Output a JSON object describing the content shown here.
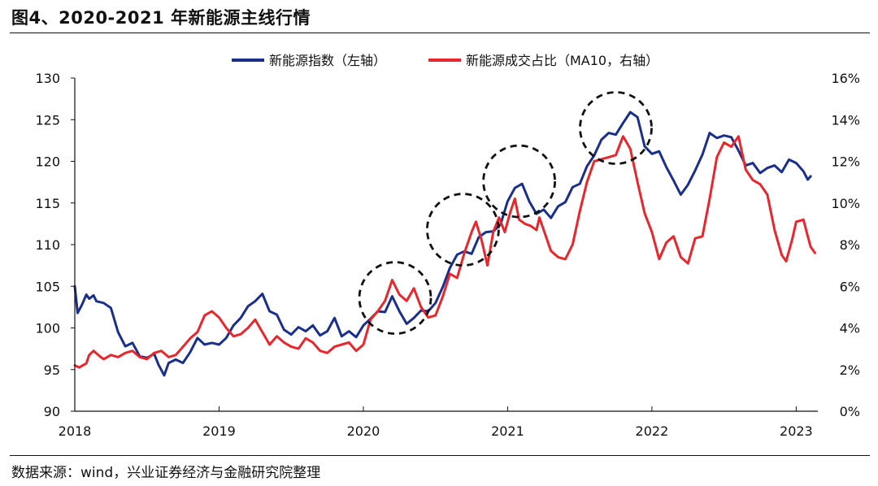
{
  "title": "图4、2020-2021 年新能源主线行情",
  "source": "数据来源：wind，兴业证券经济与金融研究院整理",
  "colors": {
    "blue": "#1a2f8c",
    "red": "#e8262c",
    "axis": "#111111",
    "circle": "#111111"
  },
  "chart_data": {
    "type": "line",
    "legend_position": "top",
    "x_ticks": [
      "2018",
      "2019",
      "2020",
      "2021",
      "2022",
      "2023"
    ],
    "x_range": [
      2018.0,
      2023.15
    ],
    "y_left": {
      "min": 90,
      "max": 130,
      "ticks": [
        "90",
        "95",
        "100",
        "105",
        "110",
        "115",
        "120",
        "125",
        "130"
      ]
    },
    "y_right": {
      "min": 0,
      "max": 16,
      "ticks": [
        "0%",
        "2%",
        "4%",
        "6%",
        "8%",
        "10%",
        "12%",
        "14%",
        "16%"
      ]
    },
    "series": [
      {
        "name": "新能源指数（左轴）",
        "axis": "left",
        "color_key": "blue",
        "points": [
          [
            2018.0,
            105.0
          ],
          [
            2018.02,
            101.8
          ],
          [
            2018.05,
            102.8
          ],
          [
            2018.08,
            104.0
          ],
          [
            2018.1,
            103.5
          ],
          [
            2018.13,
            103.9
          ],
          [
            2018.15,
            103.2
          ],
          [
            2018.2,
            103.0
          ],
          [
            2018.25,
            102.4
          ],
          [
            2018.3,
            99.5
          ],
          [
            2018.35,
            97.8
          ],
          [
            2018.4,
            98.2
          ],
          [
            2018.45,
            96.6
          ],
          [
            2018.5,
            96.4
          ],
          [
            2018.55,
            96.9
          ],
          [
            2018.58,
            95.6
          ],
          [
            2018.62,
            94.3
          ],
          [
            2018.65,
            95.8
          ],
          [
            2018.7,
            96.2
          ],
          [
            2018.75,
            95.8
          ],
          [
            2018.8,
            97.1
          ],
          [
            2018.85,
            98.8
          ],
          [
            2018.9,
            98.0
          ],
          [
            2018.95,
            98.2
          ],
          [
            2019.0,
            98.0
          ],
          [
            2019.05,
            98.8
          ],
          [
            2019.1,
            100.3
          ],
          [
            2019.15,
            101.2
          ],
          [
            2019.2,
            102.6
          ],
          [
            2019.25,
            103.2
          ],
          [
            2019.3,
            104.1
          ],
          [
            2019.35,
            102.0
          ],
          [
            2019.4,
            101.6
          ],
          [
            2019.45,
            99.8
          ],
          [
            2019.5,
            99.2
          ],
          [
            2019.55,
            100.1
          ],
          [
            2019.6,
            99.6
          ],
          [
            2019.65,
            100.3
          ],
          [
            2019.7,
            99.1
          ],
          [
            2019.75,
            99.6
          ],
          [
            2019.8,
            101.2
          ],
          [
            2019.85,
            99.0
          ],
          [
            2019.9,
            99.6
          ],
          [
            2019.95,
            98.9
          ],
          [
            2020.0,
            100.3
          ],
          [
            2020.05,
            101.1
          ],
          [
            2020.1,
            102.0
          ],
          [
            2020.15,
            101.9
          ],
          [
            2020.2,
            103.8
          ],
          [
            2020.25,
            102.0
          ],
          [
            2020.3,
            100.5
          ],
          [
            2020.35,
            101.2
          ],
          [
            2020.4,
            102.1
          ],
          [
            2020.45,
            102.0
          ],
          [
            2020.5,
            103.0
          ],
          [
            2020.55,
            104.9
          ],
          [
            2020.6,
            107.2
          ],
          [
            2020.65,
            108.8
          ],
          [
            2020.7,
            109.2
          ],
          [
            2020.75,
            108.9
          ],
          [
            2020.8,
            110.9
          ],
          [
            2020.85,
            111.5
          ],
          [
            2020.9,
            111.6
          ],
          [
            2020.95,
            112.4
          ],
          [
            2021.0,
            115.2
          ],
          [
            2021.05,
            116.8
          ],
          [
            2021.1,
            117.3
          ],
          [
            2021.15,
            115.2
          ],
          [
            2021.2,
            113.7
          ],
          [
            2021.25,
            114.2
          ],
          [
            2021.3,
            113.2
          ],
          [
            2021.35,
            114.6
          ],
          [
            2021.4,
            115.1
          ],
          [
            2021.45,
            116.9
          ],
          [
            2021.5,
            117.3
          ],
          [
            2021.55,
            119.4
          ],
          [
            2021.6,
            120.7
          ],
          [
            2021.65,
            122.6
          ],
          [
            2021.7,
            123.4
          ],
          [
            2021.75,
            123.2
          ],
          [
            2021.8,
            124.6
          ],
          [
            2021.85,
            125.9
          ],
          [
            2021.9,
            125.3
          ],
          [
            2021.95,
            121.8
          ],
          [
            2022.0,
            120.9
          ],
          [
            2022.05,
            121.2
          ],
          [
            2022.1,
            119.3
          ],
          [
            2022.15,
            117.7
          ],
          [
            2022.2,
            116.0
          ],
          [
            2022.25,
            117.2
          ],
          [
            2022.3,
            118.9
          ],
          [
            2022.35,
            120.8
          ],
          [
            2022.4,
            123.4
          ],
          [
            2022.45,
            122.8
          ],
          [
            2022.5,
            123.1
          ],
          [
            2022.55,
            122.9
          ],
          [
            2022.6,
            121.3
          ],
          [
            2022.65,
            119.5
          ],
          [
            2022.7,
            119.8
          ],
          [
            2022.75,
            118.6
          ],
          [
            2022.8,
            119.2
          ],
          [
            2022.85,
            119.5
          ],
          [
            2022.9,
            118.7
          ],
          [
            2022.95,
            120.2
          ],
          [
            2023.0,
            119.8
          ],
          [
            2023.05,
            118.8
          ],
          [
            2023.08,
            117.8
          ],
          [
            2023.1,
            118.2
          ]
        ]
      },
      {
        "name": "新能源成交占比（MA10，右轴）",
        "axis": "right",
        "color_key": "red",
        "points": [
          [
            2018.0,
            2.2
          ],
          [
            2018.03,
            2.1
          ],
          [
            2018.08,
            2.3
          ],
          [
            2018.1,
            2.7
          ],
          [
            2018.13,
            2.9
          ],
          [
            2018.18,
            2.6
          ],
          [
            2018.2,
            2.5
          ],
          [
            2018.25,
            2.7
          ],
          [
            2018.3,
            2.6
          ],
          [
            2018.35,
            2.8
          ],
          [
            2018.4,
            2.9
          ],
          [
            2018.45,
            2.6
          ],
          [
            2018.5,
            2.5
          ],
          [
            2018.55,
            2.8
          ],
          [
            2018.6,
            2.9
          ],
          [
            2018.65,
            2.6
          ],
          [
            2018.7,
            2.7
          ],
          [
            2018.75,
            3.1
          ],
          [
            2018.8,
            3.5
          ],
          [
            2018.85,
            3.8
          ],
          [
            2018.9,
            4.6
          ],
          [
            2018.95,
            4.8
          ],
          [
            2019.0,
            4.5
          ],
          [
            2019.05,
            4.0
          ],
          [
            2019.1,
            3.6
          ],
          [
            2019.15,
            3.7
          ],
          [
            2019.2,
            4.0
          ],
          [
            2019.25,
            4.4
          ],
          [
            2019.3,
            3.8
          ],
          [
            2019.35,
            3.2
          ],
          [
            2019.4,
            3.6
          ],
          [
            2019.45,
            3.3
          ],
          [
            2019.5,
            3.1
          ],
          [
            2019.55,
            3.0
          ],
          [
            2019.6,
            3.5
          ],
          [
            2019.65,
            3.3
          ],
          [
            2019.7,
            2.9
          ],
          [
            2019.75,
            2.8
          ],
          [
            2019.8,
            3.1
          ],
          [
            2019.85,
            3.2
          ],
          [
            2019.9,
            3.3
          ],
          [
            2019.95,
            2.9
          ],
          [
            2020.0,
            3.2
          ],
          [
            2020.05,
            4.4
          ],
          [
            2020.1,
            4.8
          ],
          [
            2020.15,
            5.3
          ],
          [
            2020.2,
            6.3
          ],
          [
            2020.25,
            5.6
          ],
          [
            2020.3,
            5.3
          ],
          [
            2020.35,
            5.9
          ],
          [
            2020.4,
            5.0
          ],
          [
            2020.45,
            4.5
          ],
          [
            2020.5,
            4.6
          ],
          [
            2020.55,
            5.5
          ],
          [
            2020.6,
            6.6
          ],
          [
            2020.65,
            6.4
          ],
          [
            2020.7,
            7.6
          ],
          [
            2020.75,
            8.6
          ],
          [
            2020.78,
            9.1
          ],
          [
            2020.82,
            8.2
          ],
          [
            2020.86,
            7.0
          ],
          [
            2020.9,
            8.6
          ],
          [
            2020.94,
            9.3
          ],
          [
            2020.98,
            8.6
          ],
          [
            2021.02,
            9.6
          ],
          [
            2021.05,
            10.2
          ],
          [
            2021.08,
            9.2
          ],
          [
            2021.12,
            9.0
          ],
          [
            2021.16,
            8.9
          ],
          [
            2021.2,
            8.7
          ],
          [
            2021.22,
            9.3
          ],
          [
            2021.26,
            8.5
          ],
          [
            2021.3,
            7.7
          ],
          [
            2021.35,
            7.4
          ],
          [
            2021.4,
            7.3
          ],
          [
            2021.45,
            8.0
          ],
          [
            2021.5,
            9.6
          ],
          [
            2021.55,
            11.0
          ],
          [
            2021.6,
            12.0
          ],
          [
            2021.65,
            12.1
          ],
          [
            2021.7,
            12.2
          ],
          [
            2021.75,
            12.3
          ],
          [
            2021.8,
            13.2
          ],
          [
            2021.85,
            12.6
          ],
          [
            2021.9,
            11.0
          ],
          [
            2021.95,
            9.5
          ],
          [
            2022.0,
            8.6
          ],
          [
            2022.05,
            7.3
          ],
          [
            2022.1,
            8.1
          ],
          [
            2022.15,
            8.4
          ],
          [
            2022.2,
            7.4
          ],
          [
            2022.25,
            7.1
          ],
          [
            2022.3,
            8.3
          ],
          [
            2022.35,
            8.4
          ],
          [
            2022.4,
            10.2
          ],
          [
            2022.45,
            12.2
          ],
          [
            2022.5,
            12.9
          ],
          [
            2022.55,
            12.7
          ],
          [
            2022.6,
            13.2
          ],
          [
            2022.65,
            11.6
          ],
          [
            2022.7,
            11.1
          ],
          [
            2022.75,
            10.9
          ],
          [
            2022.8,
            10.4
          ],
          [
            2022.85,
            8.7
          ],
          [
            2022.9,
            7.5
          ],
          [
            2022.93,
            7.2
          ],
          [
            2022.97,
            8.2
          ],
          [
            2023.0,
            9.1
          ],
          [
            2023.05,
            9.2
          ],
          [
            2023.08,
            8.4
          ],
          [
            2023.1,
            7.9
          ],
          [
            2023.13,
            7.6
          ]
        ]
      }
    ]
  }
}
